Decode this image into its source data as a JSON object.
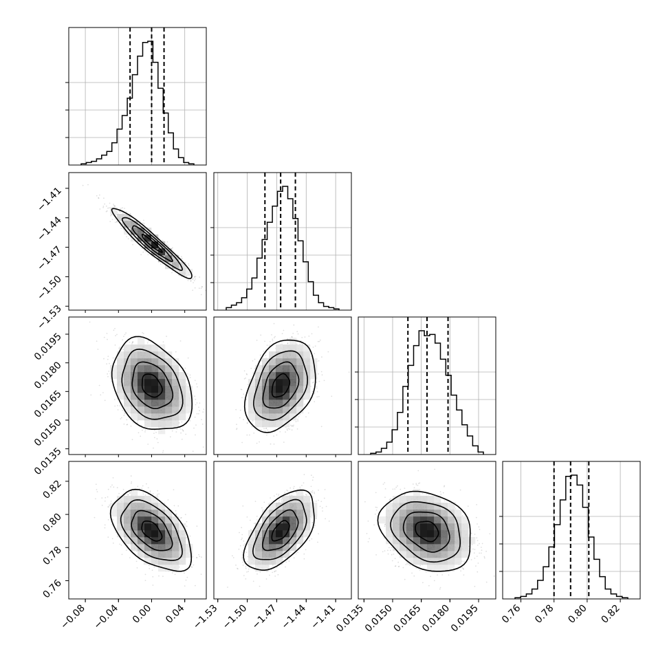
{
  "chart_data": {
    "type": "corner",
    "params": [
      {
        "ticks": [
          -0.08,
          -0.04,
          0.0,
          0.04
        ],
        "tick_labels": [
          "−0.08",
          "−0.04",
          "0.00",
          "0.04"
        ],
        "range": [
          -0.1,
          0.066
        ],
        "median": 0.0,
        "q16": -0.026,
        "q84": 0.015,
        "sigma": 0.021
      },
      {
        "ticks": [
          -1.53,
          -1.5,
          -1.47,
          -1.44,
          -1.41
        ],
        "tick_labels": [
          "−1.53",
          "−1.50",
          "−1.47",
          "−1.44",
          "−1.41"
        ],
        "range": [
          -1.534,
          -1.394
        ],
        "median": -1.466,
        "q16": -1.482,
        "q84": -1.451,
        "sigma": 0.0155
      },
      {
        "ticks": [
          0.0135,
          0.015,
          0.0165,
          0.018,
          0.0195
        ],
        "tick_labels": [
          "0.0135",
          "0.0150",
          "0.0165",
          "0.0180",
          "0.0195"
        ],
        "range": [
          0.0132,
          0.0204
        ],
        "median": 0.0168,
        "q16": 0.0158,
        "q84": 0.0179,
        "sigma": 0.00105
      },
      {
        "ticks": [
          0.76,
          0.78,
          0.8,
          0.82
        ],
        "tick_labels": [
          "0.76",
          "0.78",
          "0.80",
          "0.82"
        ],
        "range": [
          0.749,
          0.832
        ],
        "median": 0.79,
        "q16": 0.78,
        "q84": 0.801,
        "sigma": 0.0105
      }
    ],
    "correlations": {
      "1-0": -0.95,
      "2-0": -0.3,
      "2-1": 0.35,
      "3-0": -0.5,
      "3-1": 0.55,
      "3-2": -0.25
    },
    "histograms": [
      [
        0.01,
        0.02,
        0.03,
        0.05,
        0.08,
        0.11,
        0.18,
        0.29,
        0.4,
        0.54,
        0.73,
        0.88,
        0.99,
        1.0,
        0.83,
        0.62,
        0.42,
        0.26,
        0.13,
        0.06,
        0.02,
        0.01
      ],
      [
        0.02,
        0.04,
        0.06,
        0.1,
        0.17,
        0.26,
        0.42,
        0.57,
        0.71,
        0.84,
        0.96,
        1.0,
        0.9,
        0.74,
        0.56,
        0.39,
        0.23,
        0.12,
        0.06,
        0.03,
        0.02,
        0.01
      ],
      [
        0.01,
        0.02,
        0.05,
        0.1,
        0.2,
        0.34,
        0.55,
        0.72,
        0.88,
        1.0,
        0.96,
        0.97,
        0.9,
        0.77,
        0.64,
        0.48,
        0.36,
        0.24,
        0.15,
        0.07,
        0.02
      ],
      [
        0.01,
        0.02,
        0.04,
        0.08,
        0.15,
        0.26,
        0.42,
        0.6,
        0.8,
        0.99,
        1.0,
        0.92,
        0.74,
        0.5,
        0.32,
        0.18,
        0.08,
        0.04,
        0.02,
        0.01
      ]
    ],
    "grid": true,
    "contour_levels_sigma": [
      0.5,
      1.0,
      1.5,
      2.0
    ]
  }
}
